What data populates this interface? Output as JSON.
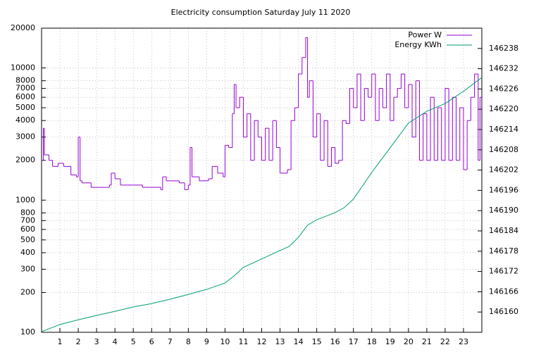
{
  "chart_data": {
    "type": "line",
    "title": "Electricity consumption Saturday July 11 2020",
    "log_scale_y": true,
    "grid": true,
    "legend": "top-right",
    "xlim": [
      0,
      24
    ],
    "xticks": [
      1,
      2,
      3,
      4,
      5,
      6,
      7,
      8,
      9,
      10,
      11,
      12,
      13,
      14,
      15,
      16,
      17,
      18,
      19,
      20,
      21,
      22,
      23
    ],
    "ylim": [
      100,
      20000
    ],
    "yticks": [
      100,
      200,
      300,
      400,
      500,
      600,
      700,
      800,
      1000,
      2000,
      3000,
      4000,
      5000,
      6000,
      7000,
      8000,
      10000,
      20000
    ],
    "y2lim": [
      146154,
      146244
    ],
    "y2ticks": [
      146160,
      146166,
      146172,
      146178,
      146184,
      146190,
      146196,
      146202,
      146208,
      146214,
      146220,
      146226,
      146232,
      146238
    ],
    "series": [
      {
        "name": "Power W",
        "color": "#9400d3",
        "style": "steps",
        "x": [
          0,
          0.1,
          0.15,
          0.4,
          0.6,
          0.9,
          1.2,
          1.5,
          1.6,
          1.9,
          2.0,
          2.1,
          2.2,
          2.7,
          3.5,
          3.7,
          3.8,
          4.0,
          4.3,
          5.0,
          5.5,
          6.0,
          6.5,
          6.6,
          6.8,
          7.5,
          7.8,
          8.0,
          8.1,
          8.2,
          8.6,
          9.1,
          9.3,
          9.6,
          9.9,
          10.0,
          10.2,
          10.4,
          10.5,
          10.6,
          10.8,
          11.0,
          11.2,
          11.4,
          11.6,
          11.8,
          12.0,
          12.2,
          12.4,
          12.6,
          12.8,
          13.0,
          13.4,
          13.6,
          13.8,
          14.0,
          14.2,
          14.4,
          14.5,
          14.6,
          14.8,
          15.0,
          15.2,
          15.4,
          15.6,
          15.8,
          16.0,
          16.2,
          16.4,
          16.6,
          16.8,
          17.0,
          17.2,
          17.4,
          17.6,
          17.8,
          18.0,
          18.2,
          18.4,
          18.6,
          18.8,
          19.0,
          19.2,
          19.4,
          19.6,
          19.8,
          20.0,
          20.2,
          20.4,
          20.6,
          20.8,
          21.0,
          21.2,
          21.4,
          21.6,
          21.8,
          22.0,
          22.2,
          22.4,
          22.6,
          22.8,
          23.0,
          23.2,
          23.4,
          23.6,
          23.8,
          23.9
        ],
        "values": [
          2000,
          3500,
          2200,
          2000,
          1800,
          1900,
          1800,
          1800,
          1550,
          1500,
          3000,
          1400,
          1350,
          1250,
          1250,
          1300,
          1600,
          1450,
          1300,
          1300,
          1250,
          1250,
          1200,
          1500,
          1400,
          1350,
          1200,
          1300,
          2500,
          1500,
          1400,
          1450,
          1800,
          1600,
          1500,
          2600,
          2500,
          4500,
          7500,
          5000,
          6000,
          3000,
          4500,
          2000,
          4000,
          3000,
          2000,
          3500,
          2000,
          4000,
          2500,
          1600,
          1700,
          4000,
          5000,
          9000,
          12000,
          17000,
          6000,
          8000,
          3000,
          4500,
          2000,
          4000,
          1800,
          2500,
          1900,
          2000,
          4000,
          3800,
          7000,
          5000,
          9000,
          4000,
          7000,
          6000,
          9000,
          4000,
          7000,
          5000,
          9000,
          4000,
          6000,
          7000,
          9000,
          5000,
          7500,
          3000,
          8000,
          2000,
          4500,
          2000,
          6000,
          2000,
          5000,
          2000,
          7000,
          2000,
          6000,
          2000,
          5000,
          1700,
          4000,
          6000,
          9000,
          2000,
          6000
        ]
      },
      {
        "name": "Energy KWh",
        "color": "#009e73",
        "axis": "y2",
        "x": [
          0,
          1,
          2,
          3,
          4,
          5,
          6,
          7,
          8,
          9,
          10,
          10.5,
          11,
          12,
          13,
          13.5,
          14,
          14.5,
          15,
          16,
          16.5,
          17,
          18,
          19,
          20,
          21,
          22,
          23,
          24
        ],
        "values": [
          146154.2,
          146156.3,
          146157.7,
          146159,
          146160.2,
          146161.5,
          146162.5,
          146163.8,
          146165.2,
          146166.7,
          146168.6,
          146170.7,
          146173.2,
          146175.7,
          146178.2,
          146179.4,
          146182.1,
          146185.7,
          146187.3,
          146189.4,
          146190.9,
          146193.4,
          146201.3,
          146208.6,
          146215.9,
          146219.4,
          146221.7,
          146225.3,
          146229.4
        ]
      }
    ]
  }
}
